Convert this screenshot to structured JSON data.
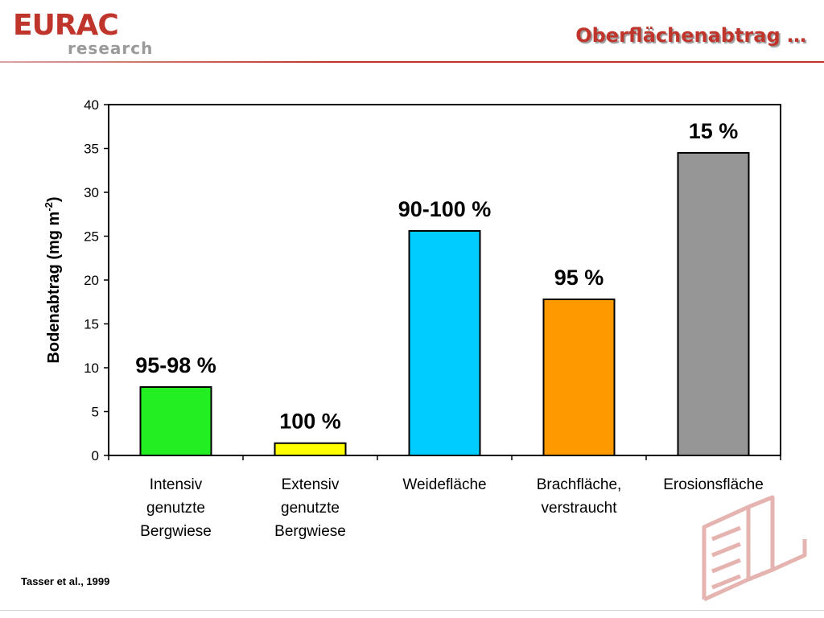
{
  "logo": {
    "main": "EURAC",
    "sub": "research"
  },
  "slide_title": "Oberflächenabtrag …",
  "source": "Tasser et al., 1999",
  "colors": {
    "brand": "#c0352b",
    "logo_gray": "#9a9a9a"
  },
  "chart_data": {
    "type": "bar",
    "categories": [
      [
        "Intensiv",
        "genutzte",
        "Bergwiese"
      ],
      [
        "Extensiv",
        "genutzte",
        "Bergwiese"
      ],
      [
        "Weidefläche"
      ],
      [
        "Brachfläche,",
        "verstraucht"
      ],
      [
        "Erosionsfläche"
      ]
    ],
    "values": [
      7.8,
      1.4,
      25.6,
      17.8,
      34.5
    ],
    "bar_labels": [
      "95-98 %",
      "100 %",
      "90-100 %",
      "95 %",
      "15 %"
    ],
    "bar_colors": [
      "#22ee22",
      "#ffff00",
      "#00ccff",
      "#ff9900",
      "#969696"
    ],
    "ylabel": "Bodenabtrag (mg m",
    "ylabel_sup": "-2",
    "ylabel_close": ")",
    "ylim": [
      0,
      40
    ],
    "yticks": [
      0,
      5,
      10,
      15,
      20,
      25,
      30,
      35,
      40
    ],
    "grid": false,
    "legend": "none"
  }
}
